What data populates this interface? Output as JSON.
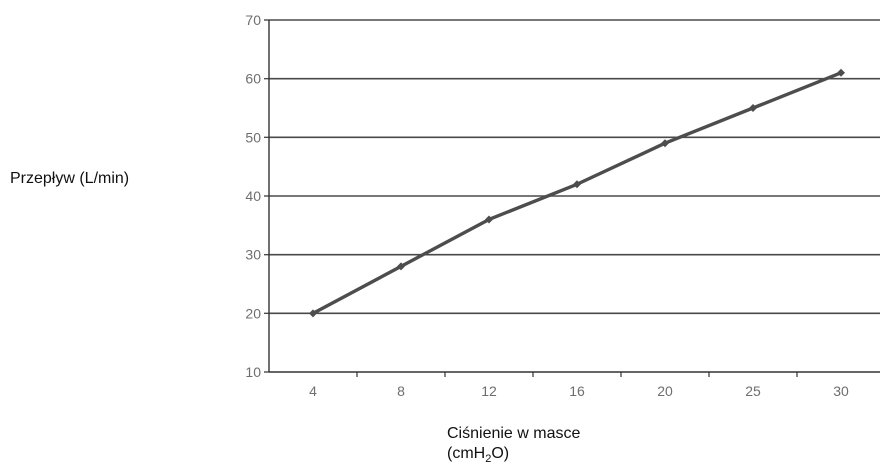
{
  "chart_data": {
    "type": "line",
    "categories": [
      "4",
      "8",
      "12",
      "16",
      "20",
      "25",
      "30"
    ],
    "series": [
      {
        "values": [
          20,
          28,
          36,
          42,
          49,
          55,
          61
        ]
      }
    ],
    "xlabel_line1": "Ciśnienie w masce",
    "xlabel_line2_prefix": "(cmH",
    "xlabel_line2_sub": "2",
    "xlabel_line2_suffix": "O)",
    "ylabel": "Przepływ (L/min)",
    "ylim": [
      10,
      70
    ],
    "yticks": [
      10,
      20,
      30,
      40,
      50,
      60,
      70
    ],
    "grid": true,
    "line_color": "#4d4d4d",
    "grid_color": "#4a4a4a"
  }
}
